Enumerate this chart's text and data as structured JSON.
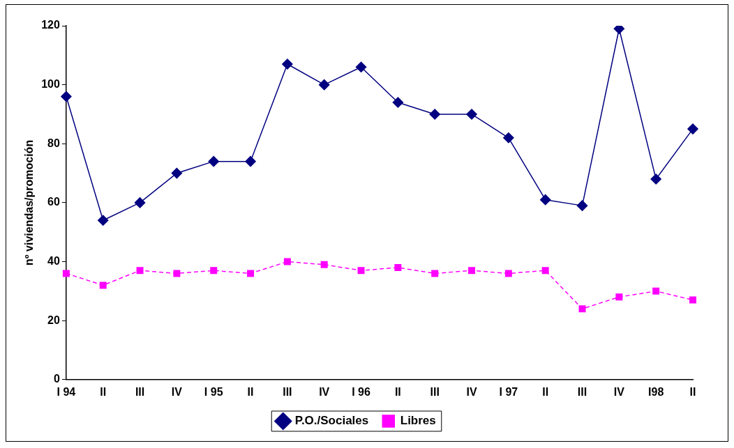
{
  "chart_data": {
    "type": "line",
    "ylabel": "nº viviendas/promoción",
    "categories": [
      "I 94",
      "II",
      "III",
      "IV",
      "I 95",
      "II",
      "III",
      "IV",
      "I 96",
      "II",
      "III",
      "IV",
      "I 97",
      "II",
      "III",
      "IV",
      "I98",
      "II"
    ],
    "series": [
      {
        "name": "P.O./Sociales",
        "color": "#000080",
        "marker": "diamond",
        "line_style": "solid",
        "values": [
          96,
          54,
          60,
          70,
          74,
          74,
          107,
          100,
          106,
          94,
          90,
          90,
          82,
          61,
          59,
          119,
          68,
          85
        ]
      },
      {
        "name": "Libres",
        "color": "#ff00ff",
        "marker": "square",
        "line_style": "dashed",
        "values": [
          36,
          32,
          37,
          36,
          37,
          36,
          40,
          39,
          37,
          38,
          36,
          37,
          36,
          37,
          24,
          28,
          30,
          27
        ]
      }
    ],
    "ylim": [
      0,
      120
    ],
    "yticks": [
      0,
      20,
      40,
      60,
      80,
      100,
      120
    ],
    "grid": false,
    "legend": "bottom"
  }
}
